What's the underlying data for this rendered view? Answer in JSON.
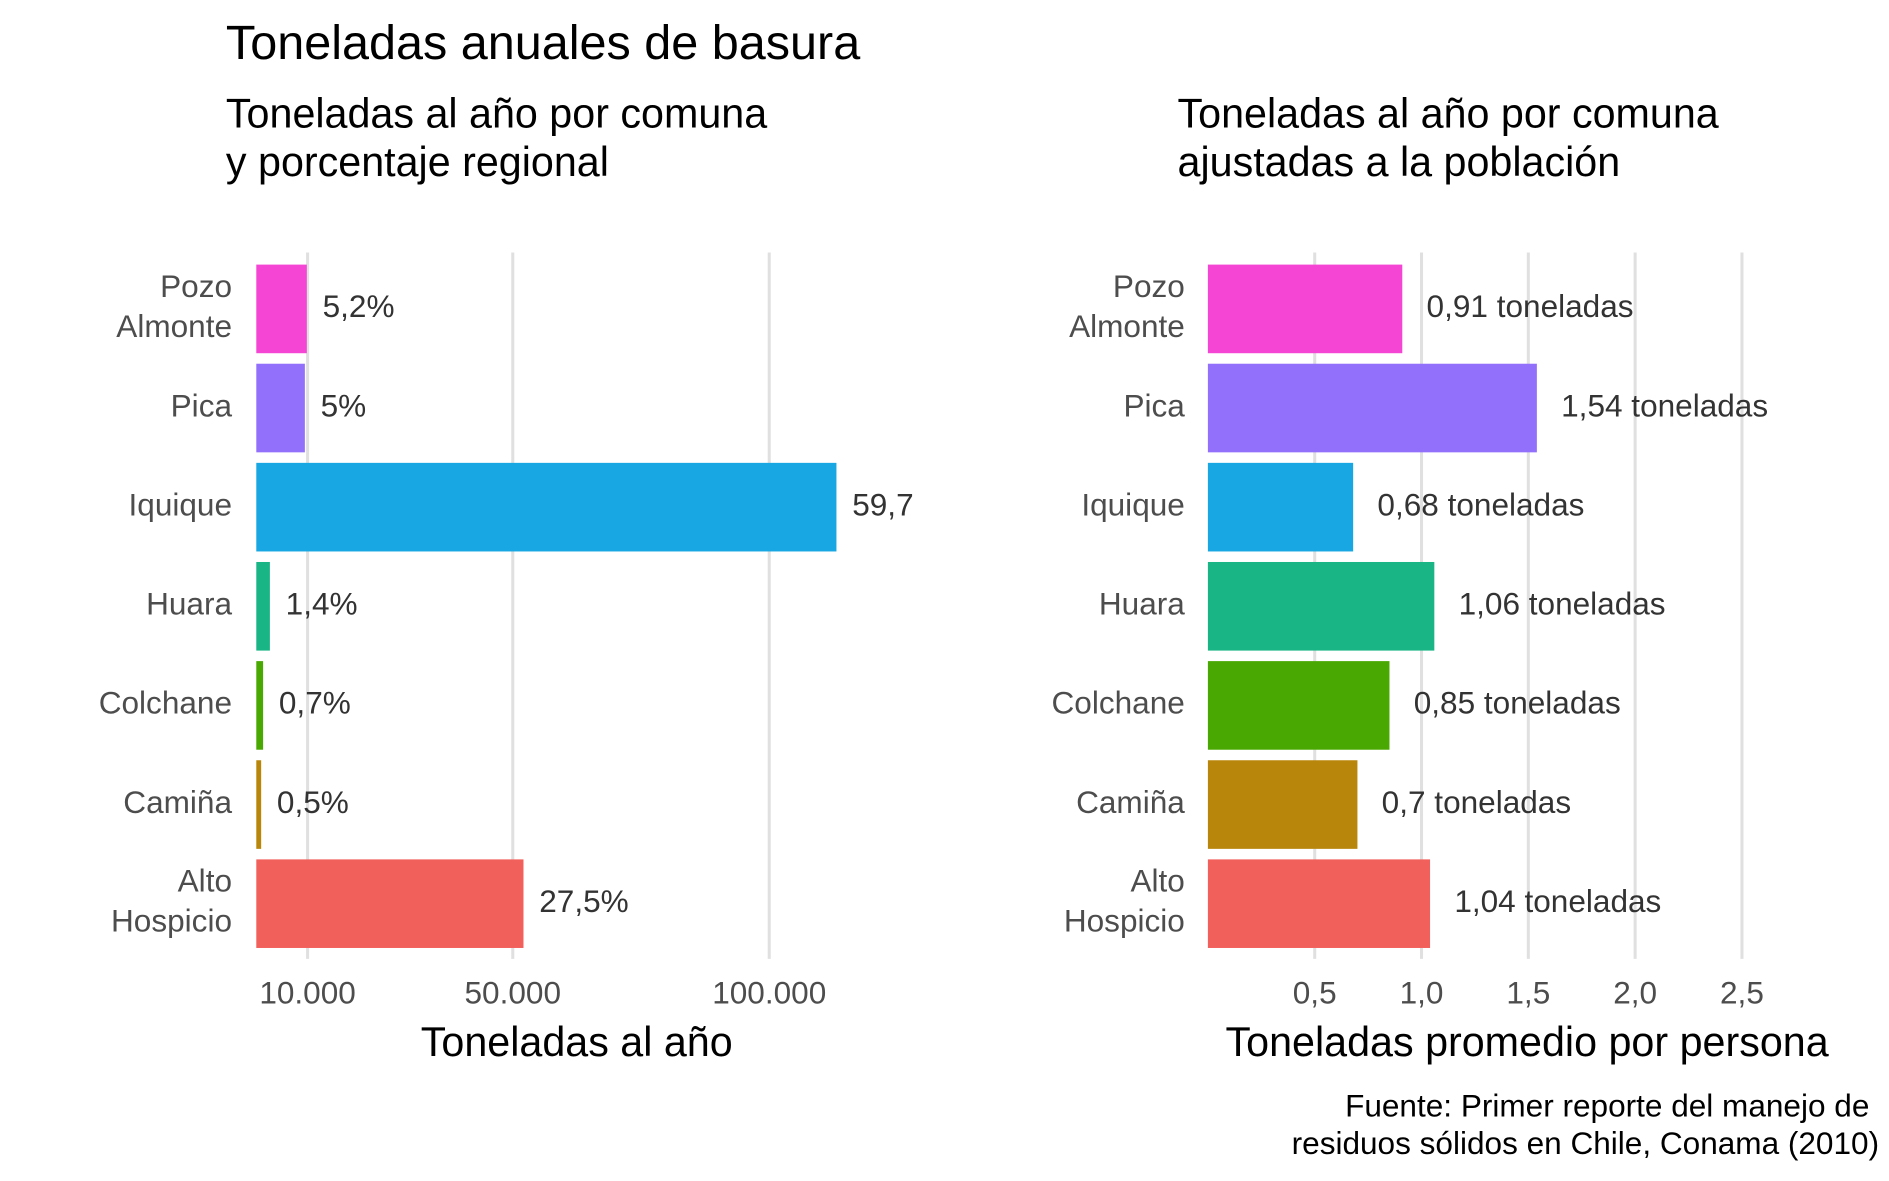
{
  "title": "Toneladas anuales de basura",
  "caption": [
    "Fuente: Primer reporte del manejo de",
    "residuos sólidos en Chile, Conama (2010)"
  ],
  "chart_data": [
    {
      "type": "bar",
      "orientation": "horizontal",
      "subtitle": [
        "Toneladas al año por comuna",
        "y porcentaje regional"
      ],
      "x_label": "Toneladas al año",
      "categories": [
        "Pozo Almonte",
        "Pica",
        "Iquique",
        "Huara",
        "Colchane",
        "Camiña",
        "Alto Hospicio"
      ],
      "values": [
        9850,
        9470,
        113100,
        2650,
        1330,
        950,
        52090
      ],
      "share_values": [
        5.2,
        5,
        59.7,
        1.4,
        0.7,
        0.5,
        27.5
      ],
      "share_labels": [
        "5,2%",
        "5%",
        "59,7",
        "1,4%",
        "0,7%",
        "0,5%",
        "27,5%"
      ],
      "colors": [
        "#f545d4",
        "#9370fb",
        "#18a7e3",
        "#1ab584",
        "#4aa802",
        "#b8860b",
        "#f2605c"
      ],
      "xlim": [
        0,
        115000
      ],
      "xticks": [
        {
          "value": 10000,
          "label": "10.000"
        },
        {
          "value": 50000,
          "label": "50.000"
        },
        {
          "value": 100000,
          "label": "100.000"
        }
      ],
      "grid": true
    },
    {
      "type": "bar",
      "orientation": "horizontal",
      "subtitle": [
        "Toneladas al año por comuna",
        "ajustadas a la población"
      ],
      "x_label": "Toneladas promedio por persona",
      "categories": [
        "Pozo Almonte",
        "Pica",
        "Iquique",
        "Huara",
        "Colchane",
        "Camiña",
        "Alto Hospicio"
      ],
      "values": [
        0.91,
        1.54,
        0.68,
        1.06,
        0.85,
        0.7,
        1.04
      ],
      "value_labels": [
        "0,91 toneladas",
        "1,54 toneladas",
        "0,68 toneladas",
        "1,06 toneladas",
        "0,85 toneladas",
        "0,7 toneladas",
        "1,04 toneladas"
      ],
      "colors": [
        "#f545d4",
        "#9370fb",
        "#18a7e3",
        "#1ab584",
        "#4aa802",
        "#b8860b",
        "#f2605c"
      ],
      "xlim": [
        0,
        2.75
      ],
      "xticks": [
        {
          "value": 0.5,
          "label": "0,5"
        },
        {
          "value": 1.0,
          "label": "1,0"
        },
        {
          "value": 1.5,
          "label": "1,5"
        },
        {
          "value": 2.0,
          "label": "2,0"
        },
        {
          "value": 2.5,
          "label": "2,5"
        }
      ],
      "grid": true
    }
  ]
}
